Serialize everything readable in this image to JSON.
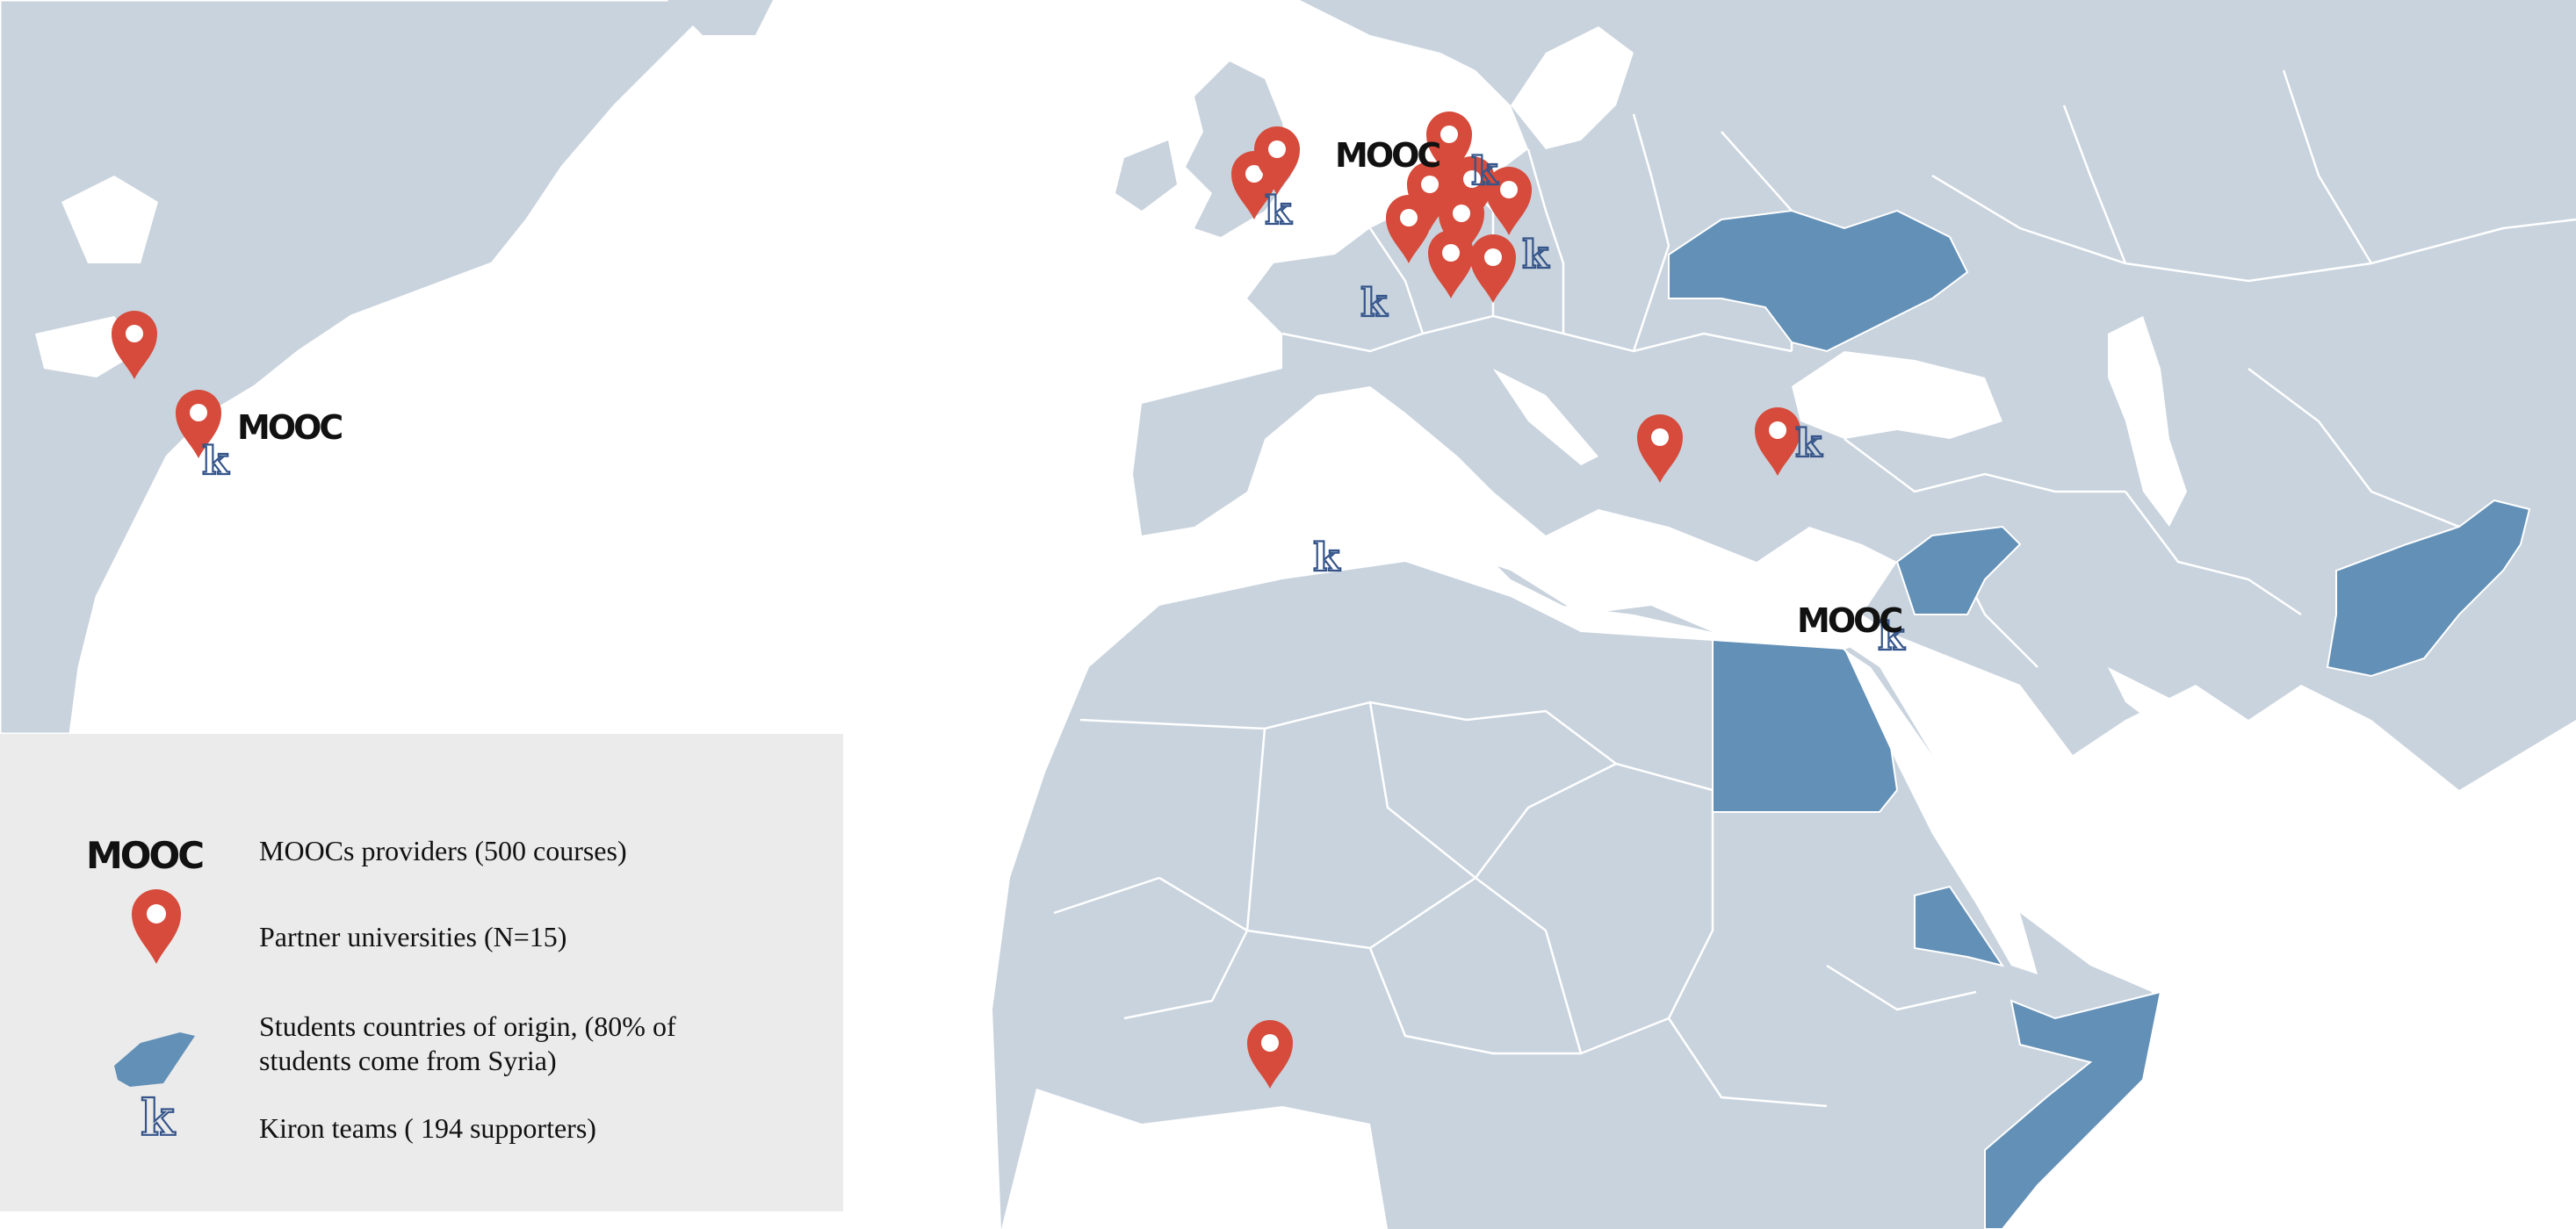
{
  "colors": {
    "ocean": "#ffffff",
    "land": "#c9d3dd",
    "border": "#ffffff",
    "origin_country": "#6290b7",
    "pin": "#d64b3b",
    "pin_center": "#ffffff",
    "kiron": "#35558a",
    "legend_bg": "#ebebeb"
  },
  "markers": {
    "mooc_text": "MOOC",
    "kiron_letter": "k"
  },
  "legend": {
    "items": [
      {
        "icon": "mooc-logo",
        "label": "MOOCs providers (500 courses)"
      },
      {
        "icon": "map-pin-icon",
        "label": "Partner universities (N=15)"
      },
      {
        "icon": "country-shape-icon",
        "label_line1": "Students countries of origin, (80% of",
        "label_line2": "students come from Syria)"
      },
      {
        "icon": "kiron-k-icon",
        "label": "Kiron teams ( 194 supporters)"
      }
    ]
  }
}
